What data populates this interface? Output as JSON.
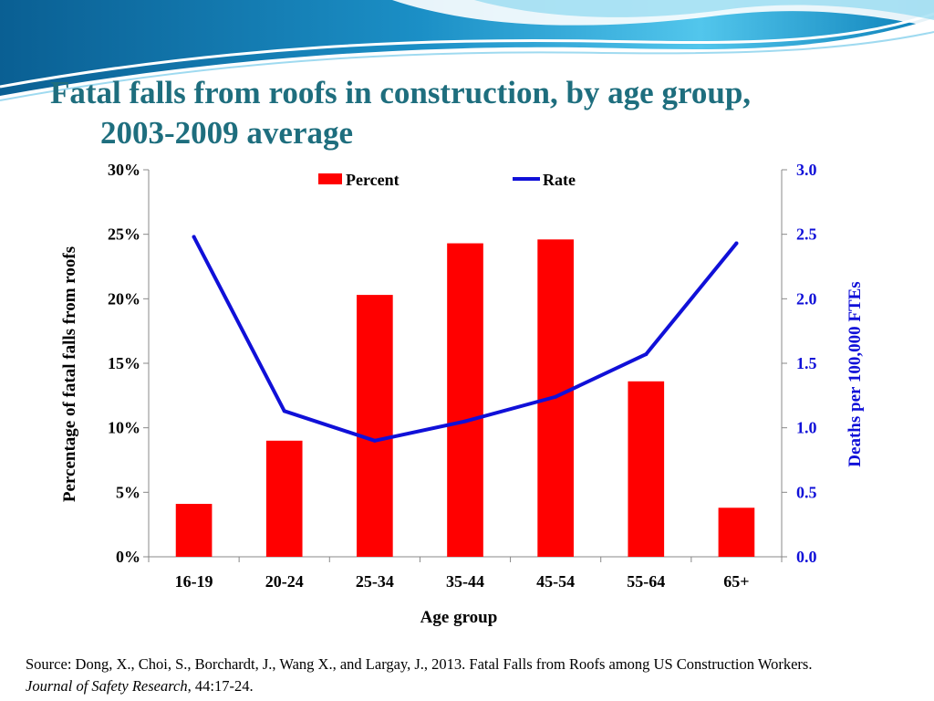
{
  "title_line1": "Fatal falls from roofs in construction, by age group,",
  "title_line2": "2003-2009 average",
  "source": {
    "prefix": "Source: Dong, X., Choi, S., Borchardt, J., Wang X., and Largay, J.,  2013. Fatal Falls from Roofs among US Construction Workers. ",
    "journal": "Journal of Safety Research",
    "suffix": ", 44:17-24."
  },
  "colors": {
    "title": "#1e6e7e",
    "bar": "#ff0000",
    "line": "#1010d8",
    "right_axis_text": "#1010d8",
    "wave_dark": "#0a6ea0",
    "wave_light": "#4fc3e8"
  },
  "chart_data": {
    "type": "bar",
    "xlabel": "Age group",
    "ylabel": "Percentage of fatal falls  from roofs",
    "y2label": "Deaths per 100,000 FTEs",
    "categories": [
      "16-19",
      "20-24",
      "25-34",
      "35-44",
      "45-54",
      "55-64",
      "65+"
    ],
    "ylim": [
      0,
      30
    ],
    "yticks": [
      "0%",
      "5%",
      "10%",
      "15%",
      "20%",
      "25%",
      "30%"
    ],
    "y2lim": [
      0,
      3
    ],
    "y2ticks": [
      "0.0",
      "0.5",
      "1.0",
      "1.5",
      "2.0",
      "2.5",
      "3.0"
    ],
    "legend_position": "top-center",
    "grid": false,
    "series": [
      {
        "name": "Percent",
        "type": "bar",
        "axis": "left",
        "values": [
          4.1,
          9.0,
          20.3,
          24.3,
          24.6,
          13.6,
          3.8
        ]
      },
      {
        "name": "Rate",
        "type": "line",
        "axis": "right",
        "values": [
          2.48,
          1.13,
          0.9,
          1.05,
          1.24,
          1.57,
          2.43
        ]
      }
    ]
  }
}
